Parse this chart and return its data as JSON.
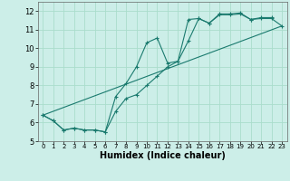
{
  "title": "",
  "xlabel": "Humidex (Indice chaleur)",
  "bg_color": "#cceee8",
  "grid_color": "#aaddcc",
  "line_color": "#1a7a6e",
  "xlim": [
    -0.5,
    23.5
  ],
  "ylim": [
    5,
    12.5
  ],
  "yticks": [
    5,
    6,
    7,
    8,
    9,
    10,
    11,
    12
  ],
  "xticks": [
    0,
    1,
    2,
    3,
    4,
    5,
    6,
    7,
    8,
    9,
    10,
    11,
    12,
    13,
    14,
    15,
    16,
    17,
    18,
    19,
    20,
    21,
    22,
    23
  ],
  "line1_x": [
    0,
    1,
    2,
    3,
    4,
    5,
    6,
    7,
    8,
    9,
    10,
    11,
    12,
    13,
    14,
    15,
    16,
    17,
    18,
    19,
    20,
    21,
    22,
    23
  ],
  "line1_y": [
    6.4,
    6.1,
    5.6,
    5.7,
    5.6,
    5.6,
    5.5,
    6.6,
    7.3,
    7.5,
    8.0,
    8.5,
    9.0,
    9.3,
    10.4,
    11.6,
    11.35,
    11.8,
    11.8,
    11.85,
    11.55,
    11.6,
    11.6,
    11.2
  ],
  "line2_x": [
    0,
    1,
    2,
    3,
    4,
    5,
    6,
    7,
    8,
    9,
    10,
    11,
    12,
    13,
    14,
    15,
    16,
    17,
    18,
    19,
    20,
    21,
    22
  ],
  "line2_y": [
    6.4,
    6.1,
    5.6,
    5.7,
    5.6,
    5.6,
    5.5,
    7.4,
    8.1,
    9.0,
    10.3,
    10.55,
    9.2,
    9.3,
    11.55,
    11.6,
    11.35,
    11.85,
    11.85,
    11.9,
    11.55,
    11.65,
    11.65
  ],
  "line3_x": [
    0,
    23
  ],
  "line3_y": [
    6.4,
    11.2
  ]
}
